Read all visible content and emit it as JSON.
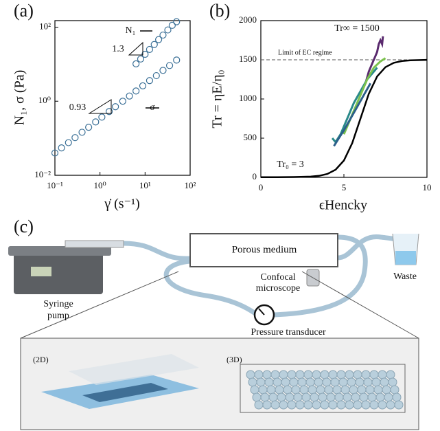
{
  "chart_data": [
    {
      "type": "scatter",
      "panel_label": "(a)",
      "xlabel": "γ̇ (s⁻¹)",
      "ylabel": "N₁, σ (Pa)",
      "xlog": true,
      "ylog": true,
      "xlim": [
        0.1,
        100
      ],
      "ylim": [
        0.01,
        150
      ],
      "xticks": [
        {
          "value": 0.1,
          "label": "10⁻¹"
        },
        {
          "value": 1,
          "label": "10⁰"
        },
        {
          "value": 10,
          "label": "10¹"
        },
        {
          "value": 100,
          "label": "10²"
        }
      ],
      "yticks": [
        {
          "value": 0.01,
          "label": "10⁻²"
        },
        {
          "value": 1,
          "label": "10⁰"
        },
        {
          "value": 100,
          "label": "10²"
        }
      ],
      "series": [
        {
          "color": "#3a6f96",
          "x": [
            0.1,
            0.14,
            0.2,
            0.28,
            0.4,
            0.56,
            0.8,
            1.1,
            1.6,
            2.2,
            3.2,
            4.5,
            6.3,
            8.9,
            12.6,
            17.8,
            25,
            35,
            50
          ],
          "values": [
            0.04,
            0.055,
            0.076,
            0.104,
            0.145,
            0.198,
            0.276,
            0.372,
            0.526,
            0.71,
            1.0,
            1.38,
            1.89,
            2.6,
            3.6,
            4.9,
            6.8,
            9.2,
            12.9
          ]
        },
        {
          "color": "#3a6f96",
          "x": [
            6.3,
            8,
            10,
            12.6,
            16,
            20,
            25,
            32,
            40,
            50
          ],
          "values": [
            10.2,
            13.8,
            18.5,
            25,
            34,
            46,
            61,
            84,
            112,
            140
          ]
        }
      ],
      "annotations": [
        "N₁",
        "1.3",
        "0.93",
        "σ"
      ]
    },
    {
      "type": "line",
      "panel_label": "(b)",
      "xlabel": "ϵHencky",
      "ylabel": "Tr = ηE/η₀",
      "xlim": [
        0,
        10
      ],
      "ylim": [
        0,
        2000
      ],
      "xticks": [
        0,
        5,
        10
      ],
      "yticks": [
        0,
        500,
        1000,
        1500,
        2000
      ],
      "hline": {
        "value": 1500,
        "label": "Limit of EC regime"
      },
      "series": [
        {
          "color": "#5a2a6e",
          "x": [
            6.3,
            6.5,
            6.7,
            6.9,
            7.0,
            7.1,
            7.2,
            7.3,
            7.35
          ],
          "values": [
            1200,
            1350,
            1450,
            1550,
            1600,
            1700,
            1750,
            1700,
            1800
          ]
        },
        {
          "color": "#2a8a8a",
          "x": [
            4.3,
            4.5,
            4.8,
            5.0,
            5.3,
            5.6,
            6.0,
            6.4,
            6.8,
            7.0
          ],
          "values": [
            500,
            450,
            550,
            650,
            800,
            950,
            1100,
            1250,
            1350,
            1400
          ]
        },
        {
          "color": "#7cc24e",
          "x": [
            5.0,
            5.3,
            5.6,
            6.0,
            6.4,
            6.8,
            7.2,
            7.5
          ],
          "values": [
            550,
            700,
            850,
            1050,
            1250,
            1400,
            1480,
            1520
          ]
        },
        {
          "color": "#2c5f8a",
          "x": [
            4.4,
            4.7,
            5.0,
            5.4,
            5.8,
            6.2,
            6.6
          ],
          "values": [
            400,
            500,
            600,
            750,
            900,
            1050,
            1200
          ]
        },
        {
          "color": "#000000",
          "x": [
            0,
            1,
            2,
            3,
            3.5,
            4,
            4.5,
            5,
            5.5,
            6,
            6.5,
            7,
            7.5,
            8,
            8.5,
            9,
            10
          ],
          "values": [
            3,
            3,
            4,
            10,
            19,
            43,
            97,
            215,
            436,
            752,
            1067,
            1288,
            1406,
            1461,
            1484,
            1493,
            1499
          ]
        }
      ],
      "annotations": [
        "Tr∞ = 1500",
        "Tr₀ = 3"
      ]
    }
  ],
  "diagram": {
    "panel_label": "(c)",
    "porous_medium": "Porous medium",
    "microscope": [
      "Confocal",
      "microscope"
    ],
    "pump": [
      "Syringe",
      "pump"
    ],
    "waste": "Waste",
    "transducer": "Pressure transducer",
    "inset_2d": "(2D)",
    "inset_3d": "(3D)"
  }
}
